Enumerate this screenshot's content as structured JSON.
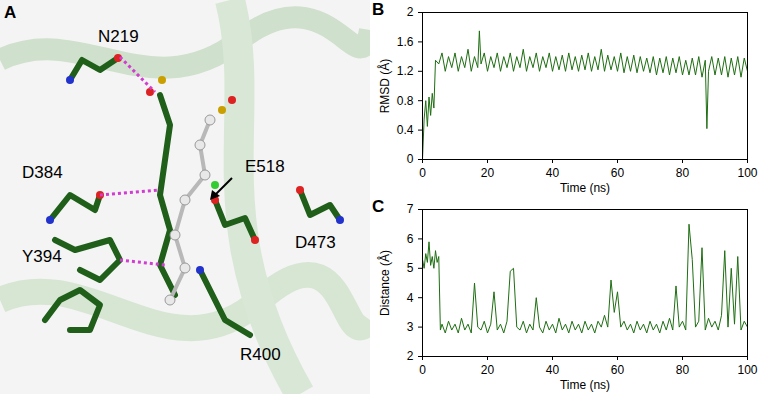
{
  "diagram": {
    "panel": "A",
    "residues": [
      "N219",
      "D384",
      "Y394",
      "E518",
      "D473",
      "R400"
    ]
  },
  "chart_data": [
    {
      "type": "line",
      "title": "B",
      "x_label": "Time (ns)",
      "y_label": "RMSD (Å)",
      "x": [
        0,
        0.5,
        1,
        1.5,
        2,
        2.5,
        3,
        3.5,
        4,
        5,
        6,
        7,
        8,
        9,
        10,
        11,
        12,
        13,
        14,
        15,
        16,
        17,
        17.5,
        18,
        19,
        20,
        21,
        22,
        23,
        24,
        25,
        26,
        27,
        28,
        29,
        30,
        31,
        32,
        33,
        34,
        35,
        36,
        37,
        38,
        39,
        40,
        41,
        42,
        43,
        44,
        45,
        46,
        47,
        48,
        49,
        50,
        51,
        52,
        53,
        54,
        55,
        56,
        57,
        58,
        59,
        60,
        61,
        62,
        63,
        64,
        65,
        66,
        67,
        68,
        69,
        70,
        71,
        72,
        73,
        74,
        75,
        76,
        77,
        78,
        79,
        80,
        81,
        82,
        83,
        84,
        85,
        86,
        87,
        87.5,
        88,
        89,
        90,
        91,
        92,
        93,
        94,
        95,
        96,
        97,
        98,
        99,
        100
      ],
      "series": [
        {
          "color": "#1e6e12",
          "values": [
            0,
            0.55,
            0.8,
            0.45,
            0.85,
            0.6,
            0.9,
            0.7,
            1.35,
            1.3,
            1.45,
            1.2,
            1.4,
            1.25,
            1.45,
            1.2,
            1.4,
            1.25,
            1.5,
            1.2,
            1.4,
            1.25,
            1.75,
            1.3,
            1.45,
            1.2,
            1.4,
            1.25,
            1.45,
            1.2,
            1.4,
            1.25,
            1.45,
            1.2,
            1.4,
            1.25,
            1.5,
            1.2,
            1.4,
            1.25,
            1.45,
            1.2,
            1.4,
            1.25,
            1.45,
            1.2,
            1.4,
            1.22,
            1.42,
            1.2,
            1.45,
            1.22,
            1.4,
            1.2,
            1.42,
            1.22,
            1.45,
            1.2,
            1.4,
            1.22,
            1.5,
            1.2,
            1.42,
            1.22,
            1.4,
            1.2,
            1.45,
            1.18,
            1.4,
            1.2,
            1.42,
            1.18,
            1.4,
            1.2,
            1.38,
            1.18,
            1.4,
            1.15,
            1.38,
            1.18,
            1.4,
            1.15,
            1.38,
            1.18,
            1.4,
            1.15,
            1.35,
            1.15,
            1.38,
            1.15,
            1.4,
            1.12,
            1.35,
            0.42,
            1.2,
            1.4,
            1.15,
            1.38,
            1.15,
            1.4,
            1.12,
            1.38,
            1.15,
            1.4,
            1.12,
            1.38,
            1.2
          ]
        }
      ],
      "xlim": [
        0,
        100
      ],
      "xticks": [
        0,
        20,
        40,
        60,
        80,
        100
      ],
      "ylim": [
        0,
        2
      ],
      "yticks": [
        0,
        0.4,
        0.8,
        1.2,
        1.6,
        2
      ]
    },
    {
      "type": "line",
      "title": "C",
      "x_label": "Time (ns)",
      "y_label": "Distance (Å)",
      "x": [
        0,
        0.5,
        1,
        1.5,
        2,
        2.5,
        3,
        3.5,
        4,
        4.5,
        5,
        5.5,
        6,
        7,
        8,
        9,
        10,
        11,
        12,
        13,
        14,
        15,
        16,
        17,
        18,
        19,
        20,
        21,
        22,
        23,
        24,
        25,
        26,
        27,
        28,
        29,
        30,
        31,
        32,
        33,
        34,
        35,
        36,
        37,
        38,
        39,
        40,
        41,
        42,
        43,
        44,
        45,
        46,
        47,
        48,
        49,
        50,
        51,
        52,
        53,
        54,
        55,
        56,
        57,
        58,
        59,
        60,
        61,
        62,
        63,
        64,
        65,
        66,
        67,
        68,
        69,
        70,
        71,
        72,
        73,
        74,
        75,
        76,
        77,
        78,
        79,
        80,
        81,
        82,
        83,
        84,
        85,
        86,
        87,
        88,
        89,
        90,
        91,
        92,
        93,
        94,
        95,
        96,
        97,
        98,
        99,
        100
      ],
      "series": [
        {
          "color": "#1e6e12",
          "values": [
            5.3,
            5.0,
            5.5,
            5.2,
            5.9,
            5.1,
            5.4,
            5.0,
            5.6,
            5.2,
            5.4,
            2.9,
            3.1,
            2.8,
            3.2,
            2.9,
            3.1,
            2.8,
            3.3,
            2.9,
            3.1,
            2.8,
            4.5,
            3.0,
            2.9,
            3.2,
            2.8,
            3.1,
            4.2,
            2.9,
            3.1,
            2.8,
            3.2,
            4.9,
            5.0,
            3.0,
            2.9,
            3.2,
            2.8,
            3.1,
            2.9,
            4.0,
            3.0,
            2.8,
            3.2,
            2.9,
            3.1,
            2.8,
            3.3,
            2.9,
            3.1,
            2.8,
            3.2,
            2.9,
            3.1,
            2.8,
            3.2,
            2.9,
            3.1,
            2.8,
            3.2,
            3.0,
            3.4,
            3.0,
            4.6,
            3.5,
            4.2,
            3.0,
            3.2,
            2.9,
            3.1,
            2.8,
            3.2,
            2.9,
            3.1,
            2.8,
            3.2,
            2.9,
            3.1,
            2.8,
            3.2,
            2.9,
            3.3,
            2.9,
            4.4,
            3.0,
            3.2,
            2.9,
            6.5,
            5.3,
            3.0,
            3.2,
            5.7,
            2.9,
            3.3,
            3.0,
            3.2,
            2.9,
            3.4,
            5.6,
            3.0,
            5.0,
            3.1,
            5.4,
            2.9,
            3.2,
            3.0
          ]
        }
      ],
      "xlim": [
        0,
        100
      ],
      "xticks": [
        0,
        20,
        40,
        60,
        80,
        100
      ],
      "ylim": [
        2,
        7
      ],
      "yticks": [
        2,
        3,
        4,
        5,
        6,
        7
      ]
    }
  ]
}
